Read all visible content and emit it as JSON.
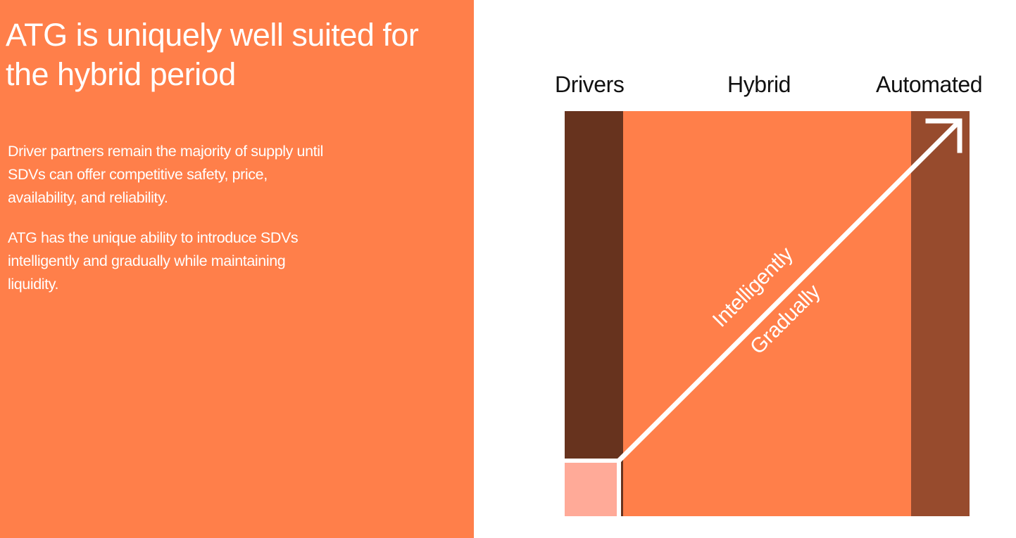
{
  "title": "ATG is uniquely well suited for the hybrid period",
  "paragraphs": [
    "Driver partners remain the majority of supply until SDVs can offer competitive safety, price, availability, and reliability.",
    "ATG has the unique ability to introduce SDVs intelligently and gradually while maintaining liquidity."
  ],
  "diagram": {
    "columns": [
      "Drivers",
      "Hybrid",
      "Automated"
    ],
    "arrow_labels": [
      "Intelligently",
      "Gradually"
    ],
    "colors": {
      "panel": "#FF7F4A",
      "drivers_bar": "#67331E",
      "automated_bar": "#974B2D",
      "hybrid_fill": "#FF7F4A",
      "start_square": "#FFAA98",
      "arrow": "#FFFFFF"
    }
  }
}
